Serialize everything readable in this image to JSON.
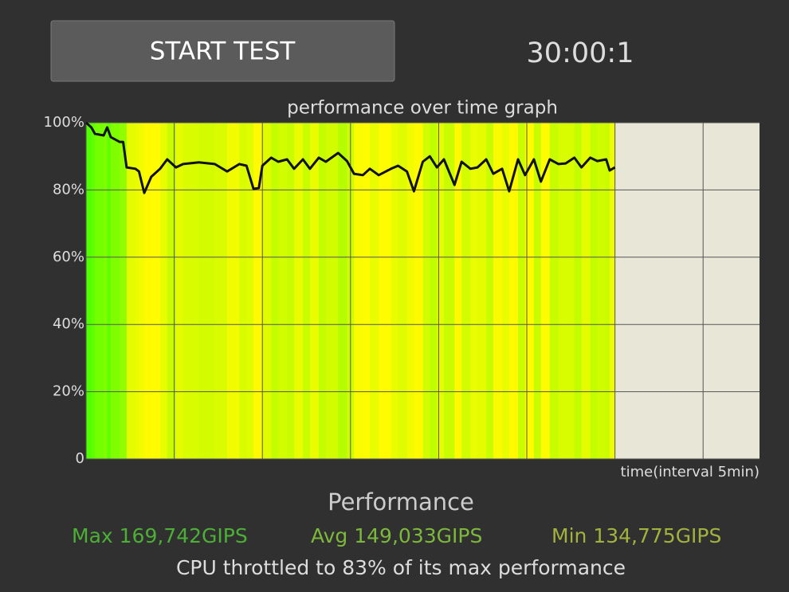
{
  "button": {
    "label": "START TEST"
  },
  "timer": "30:00:1",
  "chart_data": {
    "type": "line",
    "title": "performance over time graph",
    "x_label": "time(interval 5min)",
    "xlim": [
      0,
      38.2
    ],
    "xticks": [
      0,
      5,
      10,
      15,
      20,
      25,
      30,
      35
    ],
    "ylim": [
      0,
      100
    ],
    "yticks": [
      0,
      {
        "value": 20,
        "label": "20%"
      },
      {
        "value": 40,
        "label": "40%"
      },
      {
        "value": 60,
        "label": "60%"
      },
      {
        "value": 80,
        "label": "80%"
      },
      {
        "value": 100,
        "label": "100%"
      }
    ],
    "grid": true,
    "x": [
      0,
      0.3,
      0.5,
      1.0,
      1.2,
      1.4,
      1.9,
      2.1,
      2.3,
      2.8,
      3.0,
      3.3,
      3.7,
      4.2,
      4.6,
      5.1,
      5.5,
      6.4,
      7.3,
      8.0,
      8.7,
      9.1,
      9.5,
      9.8,
      10.0,
      10.5,
      10.9,
      11.4,
      11.8,
      12.3,
      12.7,
      13.2,
      13.6,
      14.3,
      14.8,
      15.2,
      15.7,
      16.1,
      16.6,
      17.3,
      17.7,
      18.2,
      18.6,
      19.1,
      19.5,
      19.9,
      20.3,
      20.9,
      21.3,
      21.8,
      22.2,
      22.7,
      23.1,
      23.6,
      24.0,
      24.5,
      24.9,
      25.4,
      25.8,
      26.3,
      26.8,
      27.2,
      27.7,
      28.1,
      28.6,
      29.0,
      29.5,
      29.7,
      30.0
    ],
    "series": [
      {
        "color": "#111111",
        "values": [
          100,
          98.6,
          96.7,
          96.2,
          98.6,
          95.7,
          94.3,
          94.3,
          86.7,
          86.3,
          85.5,
          79.1,
          83.9,
          86.3,
          89.1,
          86.7,
          87.7,
          88.2,
          87.7,
          85.5,
          87.7,
          87.2,
          80.3,
          80.6,
          87.2,
          89.6,
          88.4,
          89.1,
          86.3,
          89.1,
          86.3,
          89.6,
          88.4,
          91.0,
          88.6,
          84.8,
          84.4,
          86.3,
          84.4,
          86.3,
          87.2,
          85.5,
          79.6,
          88.4,
          90.0,
          86.7,
          89.1,
          81.5,
          88.4,
          86.3,
          86.7,
          89.1,
          84.8,
          86.3,
          79.6,
          89.1,
          84.4,
          89.1,
          82.5,
          89.1,
          87.7,
          87.9,
          89.6,
          86.7,
          89.6,
          88.6,
          89.1,
          85.8,
          86.7
        ]
      }
    ]
  },
  "stats": {
    "heading": "Performance",
    "max": "Max 169,742GIPS",
    "avg": "Avg 149,033GIPS",
    "min": "Min 134,775GIPS",
    "summary": "CPU throttled to 83% of its max performance"
  }
}
